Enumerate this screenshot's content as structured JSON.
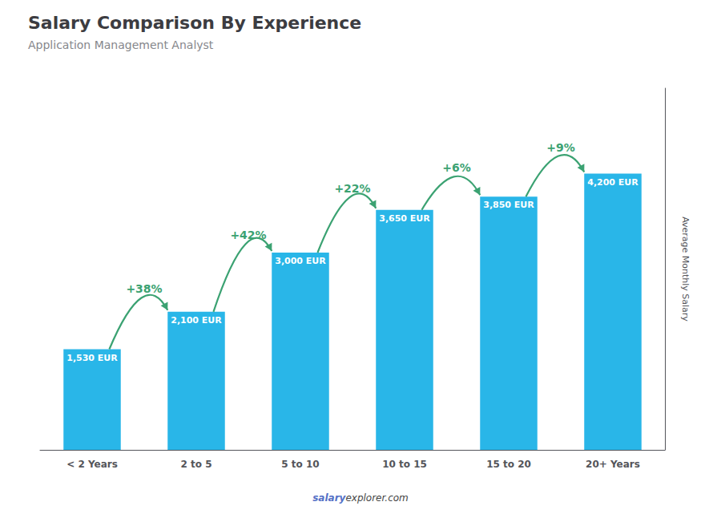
{
  "chart_data": {
    "type": "bar",
    "title": "Salary Comparison By Experience",
    "subtitle": "Application Management Analyst",
    "ylabel": "Average Monthly Salary",
    "categories": [
      "< 2 Years",
      "2 to 5",
      "5 to 10",
      "10 to 15",
      "15 to 20",
      "20+ Years"
    ],
    "values": [
      1530,
      2100,
      3000,
      3650,
      3850,
      4200
    ],
    "value_labels": [
      "1,530 EUR",
      "2,100 EUR",
      "3,000 EUR",
      "3,650 EUR",
      "3,850 EUR",
      "4,200 EUR"
    ],
    "data_labels": true,
    "annotations": [
      "+38%",
      "+42%",
      "+22%",
      "+6%",
      "+9%"
    ],
    "footer": [
      "salary",
      "explorer.com"
    ],
    "color": "#29b6e8",
    "ylim": [
      0,
      5500
    ],
    "grid": false,
    "tick_labels": "x"
  }
}
